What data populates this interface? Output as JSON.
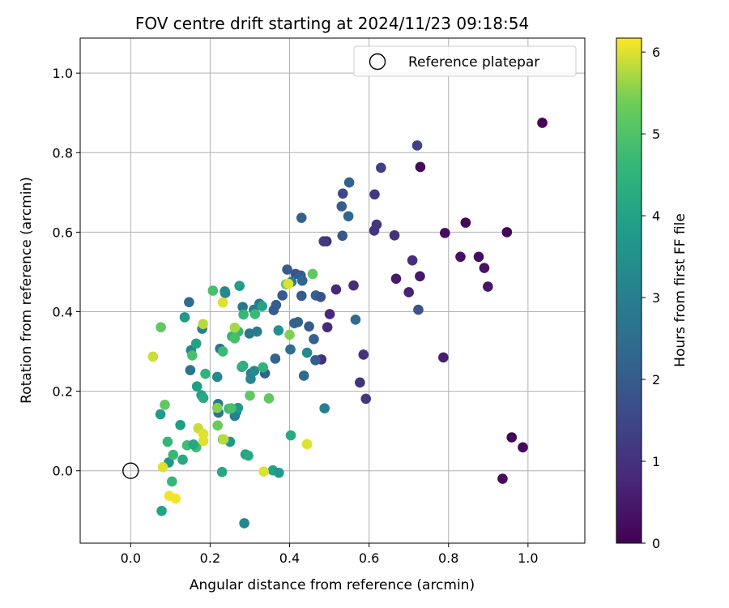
{
  "chart_data": {
    "type": "scatter",
    "title": "FOV centre drift starting at 2024/11/23 09:18:54",
    "xlabel": "Angular distance from reference (arcmin)",
    "ylabel": "Rotation from reference (arcmin)",
    "xlim": [
      -0.127,
      1.143
    ],
    "ylim": [
      -0.182,
      1.088
    ],
    "xticks": [
      "0.0",
      "0.2",
      "0.4",
      "0.6",
      "0.8",
      "1.0"
    ],
    "yticks": [
      "0.0",
      "0.2",
      "0.4",
      "0.6",
      "0.8",
      "1.0"
    ],
    "grid": true,
    "legend": {
      "position": "top-right",
      "entries": [
        "Reference platepar"
      ]
    },
    "reference_point": {
      "name": "Reference platepar",
      "x": 0.0,
      "y": 0.0
    },
    "colorbar": {
      "label": "Hours from first FF file",
      "min": 0,
      "max": 6.17,
      "ticks": [
        "0",
        "1",
        "2",
        "3",
        "4",
        "5",
        "6"
      ],
      "colormap": "viridis"
    },
    "series": [
      {
        "points": [
          {
            "x": 1.036,
            "y": 0.875,
            "c": 0.05
          },
          {
            "x": 0.947,
            "y": 0.6,
            "c": 0.1
          },
          {
            "x": 0.843,
            "y": 0.624,
            "c": 0.15
          },
          {
            "x": 0.791,
            "y": 0.598,
            "c": 0.2
          },
          {
            "x": 0.876,
            "y": 0.538,
            "c": 0.25
          },
          {
            "x": 0.83,
            "y": 0.538,
            "c": 0.3
          },
          {
            "x": 0.89,
            "y": 0.51,
            "c": 0.35
          },
          {
            "x": 0.899,
            "y": 0.463,
            "c": 0.4
          },
          {
            "x": 0.729,
            "y": 0.764,
            "c": 0.15
          },
          {
            "x": 0.728,
            "y": 0.489,
            "c": 0.45
          },
          {
            "x": 0.668,
            "y": 0.483,
            "c": 0.5
          },
          {
            "x": 0.959,
            "y": 0.084,
            "c": 0.1
          },
          {
            "x": 0.987,
            "y": 0.059,
            "c": 0.15
          },
          {
            "x": 0.936,
            "y": -0.02,
            "c": 0.2
          },
          {
            "x": 0.787,
            "y": 0.285,
            "c": 0.6
          },
          {
            "x": 0.7,
            "y": 0.449,
            "c": 0.7
          },
          {
            "x": 0.709,
            "y": 0.529,
            "c": 0.9
          },
          {
            "x": 0.664,
            "y": 0.592,
            "c": 1.0
          },
          {
            "x": 0.613,
            "y": 0.604,
            "c": 1.05
          },
          {
            "x": 0.619,
            "y": 0.619,
            "c": 1.1
          },
          {
            "x": 0.614,
            "y": 0.695,
            "c": 1.2
          },
          {
            "x": 0.63,
            "y": 0.762,
            "c": 1.3
          },
          {
            "x": 0.721,
            "y": 0.818,
            "c": 1.4
          },
          {
            "x": 0.724,
            "y": 0.405,
            "c": 1.8
          },
          {
            "x": 0.586,
            "y": 0.292,
            "c": 1.0
          },
          {
            "x": 0.577,
            "y": 0.222,
            "c": 1.0
          },
          {
            "x": 0.592,
            "y": 0.181,
            "c": 1.1
          },
          {
            "x": 0.561,
            "y": 0.466,
            "c": 0.9
          },
          {
            "x": 0.517,
            "y": 0.456,
            "c": 0.8
          },
          {
            "x": 0.501,
            "y": 0.394,
            "c": 0.8
          },
          {
            "x": 0.495,
            "y": 0.361,
            "c": 0.85
          },
          {
            "x": 0.493,
            "y": 0.577,
            "c": 0.8
          },
          {
            "x": 0.486,
            "y": 0.577,
            "c": 1.2
          },
          {
            "x": 0.48,
            "y": 0.28,
            "c": 1.0
          },
          {
            "x": 0.534,
            "y": 0.697,
            "c": 1.5
          },
          {
            "x": 0.531,
            "y": 0.665,
            "c": 2.1
          },
          {
            "x": 0.55,
            "y": 0.725,
            "c": 2.2
          },
          {
            "x": 0.548,
            "y": 0.64,
            "c": 2.3
          },
          {
            "x": 0.533,
            "y": 0.591,
            "c": 1.9
          },
          {
            "x": 0.566,
            "y": 0.38,
            "c": 2.4
          },
          {
            "x": 0.43,
            "y": 0.636,
            "c": 2.2
          },
          {
            "x": 0.394,
            "y": 0.506,
            "c": 2.0
          },
          {
            "x": 0.415,
            "y": 0.495,
            "c": 1.8
          },
          {
            "x": 0.428,
            "y": 0.491,
            "c": 2.0
          },
          {
            "x": 0.432,
            "y": 0.478,
            "c": 2.3
          },
          {
            "x": 0.405,
            "y": 0.475,
            "c": 3.0
          },
          {
            "x": 0.43,
            "y": 0.44,
            "c": 2.0
          },
          {
            "x": 0.466,
            "y": 0.441,
            "c": 2.2
          },
          {
            "x": 0.478,
            "y": 0.437,
            "c": 1.8
          },
          {
            "x": 0.382,
            "y": 0.441,
            "c": 2.0
          },
          {
            "x": 0.366,
            "y": 0.417,
            "c": 2.1
          },
          {
            "x": 0.36,
            "y": 0.404,
            "c": 2.0
          },
          {
            "x": 0.412,
            "y": 0.371,
            "c": 2.3
          },
          {
            "x": 0.421,
            "y": 0.374,
            "c": 2.2
          },
          {
            "x": 0.449,
            "y": 0.363,
            "c": 2.0
          },
          {
            "x": 0.461,
            "y": 0.331,
            "c": 2.2
          },
          {
            "x": 0.402,
            "y": 0.305,
            "c": 2.5
          },
          {
            "x": 0.364,
            "y": 0.282,
            "c": 2.2
          },
          {
            "x": 0.465,
            "y": 0.278,
            "c": 2.1
          },
          {
            "x": 0.436,
            "y": 0.239,
            "c": 2.4
          },
          {
            "x": 0.338,
            "y": 0.245,
            "c": 2.2
          },
          {
            "x": 0.488,
            "y": 0.157,
            "c": 3.0
          },
          {
            "x": 0.444,
            "y": 0.297,
            "c": 3.3
          },
          {
            "x": 0.372,
            "y": 0.353,
            "c": 3.5
          },
          {
            "x": 0.324,
            "y": 0.42,
            "c": 2.8
          },
          {
            "x": 0.31,
            "y": 0.405,
            "c": 2.9
          },
          {
            "x": 0.282,
            "y": 0.412,
            "c": 2.7
          },
          {
            "x": 0.318,
            "y": 0.35,
            "c": 2.9
          },
          {
            "x": 0.299,
            "y": 0.345,
            "c": 2.8
          },
          {
            "x": 0.238,
            "y": 0.447,
            "c": 3.0
          },
          {
            "x": 0.237,
            "y": 0.451,
            "c": 3.3
          },
          {
            "x": 0.147,
            "y": 0.424,
            "c": 2.4
          },
          {
            "x": 0.18,
            "y": 0.357,
            "c": 3.0
          },
          {
            "x": 0.152,
            "y": 0.303,
            "c": 3.2
          },
          {
            "x": 0.15,
            "y": 0.253,
            "c": 2.7
          },
          {
            "x": 0.225,
            "y": 0.307,
            "c": 2.8
          },
          {
            "x": 0.218,
            "y": 0.236,
            "c": 3.3
          },
          {
            "x": 0.221,
            "y": 0.146,
            "c": 2.6
          },
          {
            "x": 0.22,
            "y": 0.168,
            "c": 2.8
          },
          {
            "x": 0.262,
            "y": 0.138,
            "c": 2.9
          },
          {
            "x": 0.266,
            "y": 0.148,
            "c": 3.1
          },
          {
            "x": 0.27,
            "y": 0.158,
            "c": 3.7
          },
          {
            "x": 0.28,
            "y": 0.261,
            "c": 3.3
          },
          {
            "x": 0.303,
            "y": 0.245,
            "c": 3.1
          },
          {
            "x": 0.302,
            "y": 0.231,
            "c": 3.2
          },
          {
            "x": 0.311,
            "y": 0.251,
            "c": 3.3
          },
          {
            "x": 0.274,
            "y": 0.465,
            "c": 3.9
          },
          {
            "x": 0.25,
            "y": 0.073,
            "c": 3.7
          },
          {
            "x": 0.286,
            "y": -0.132,
            "c": 3.2
          },
          {
            "x": 0.331,
            "y": 0.414,
            "c": 4.0
          },
          {
            "x": 0.284,
            "y": 0.393,
            "c": 4.6
          },
          {
            "x": 0.313,
            "y": 0.394,
            "c": 4.7
          },
          {
            "x": 0.255,
            "y": 0.338,
            "c": 4.5
          },
          {
            "x": 0.271,
            "y": 0.35,
            "c": 4.6
          },
          {
            "x": 0.262,
            "y": 0.333,
            "c": 4.9
          },
          {
            "x": 0.232,
            "y": 0.3,
            "c": 4.7
          },
          {
            "x": 0.165,
            "y": 0.32,
            "c": 4.0
          },
          {
            "x": 0.136,
            "y": 0.386,
            "c": 3.7
          },
          {
            "x": 0.155,
            "y": 0.29,
            "c": 4.9
          },
          {
            "x": 0.167,
            "y": 0.212,
            "c": 3.9
          },
          {
            "x": 0.178,
            "y": 0.19,
            "c": 4.0
          },
          {
            "x": 0.183,
            "y": 0.183,
            "c": 4.2
          },
          {
            "x": 0.188,
            "y": 0.244,
            "c": 4.5
          },
          {
            "x": 0.207,
            "y": 0.453,
            "c": 4.9
          },
          {
            "x": 0.283,
            "y": 0.264,
            "c": 4.1
          },
          {
            "x": 0.281,
            "y": 0.262,
            "c": 4.4
          },
          {
            "x": 0.333,
            "y": 0.26,
            "c": 4.5
          },
          {
            "x": 0.247,
            "y": 0.156,
            "c": 4.7
          },
          {
            "x": 0.253,
            "y": 0.157,
            "c": 4.9
          },
          {
            "x": 0.3,
            "y": 0.189,
            "c": 5.2
          },
          {
            "x": 0.348,
            "y": 0.182,
            "c": 5.2
          },
          {
            "x": 0.358,
            "y": 0.001,
            "c": 4.0
          },
          {
            "x": 0.373,
            "y": -0.005,
            "c": 3.7
          },
          {
            "x": 0.289,
            "y": 0.041,
            "c": 4.0
          },
          {
            "x": 0.296,
            "y": 0.038,
            "c": 4.2
          },
          {
            "x": 0.403,
            "y": 0.089,
            "c": 4.2
          },
          {
            "x": 0.23,
            "y": -0.003,
            "c": 4.1
          },
          {
            "x": 0.075,
            "y": 0.142,
            "c": 3.8
          },
          {
            "x": 0.125,
            "y": 0.115,
            "c": 3.9
          },
          {
            "x": 0.093,
            "y": 0.073,
            "c": 4.6
          },
          {
            "x": 0.096,
            "y": 0.021,
            "c": 3.6
          },
          {
            "x": 0.131,
            "y": 0.028,
            "c": 4.2
          },
          {
            "x": 0.107,
            "y": 0.04,
            "c": 4.7
          },
          {
            "x": 0.142,
            "y": 0.064,
            "c": 4.8
          },
          {
            "x": 0.165,
            "y": 0.059,
            "c": 4.8
          },
          {
            "x": 0.158,
            "y": 0.066,
            "c": 4.1
          },
          {
            "x": 0.104,
            "y": -0.027,
            "c": 4.6
          },
          {
            "x": 0.078,
            "y": -0.101,
            "c": 4.0
          },
          {
            "x": 0.076,
            "y": 0.361,
            "c": 5.2
          },
          {
            "x": 0.086,
            "y": 0.166,
            "c": 5.2
          },
          {
            "x": 0.219,
            "y": 0.114,
            "c": 5.3
          },
          {
            "x": 0.218,
            "y": 0.158,
            "c": 5.5
          },
          {
            "x": 0.232,
            "y": 0.079,
            "c": 5.3
          },
          {
            "x": 0.4,
            "y": 0.342,
            "c": 5.5
          },
          {
            "x": 0.391,
            "y": 0.469,
            "c": 5.3
          },
          {
            "x": 0.458,
            "y": 0.495,
            "c": 5.2
          },
          {
            "x": 0.397,
            "y": 0.47,
            "c": 6.0
          },
          {
            "x": 0.182,
            "y": 0.369,
            "c": 5.8
          },
          {
            "x": 0.232,
            "y": 0.423,
            "c": 6.0
          },
          {
            "x": 0.262,
            "y": 0.36,
            "c": 5.7
          },
          {
            "x": 0.056,
            "y": 0.287,
            "c": 5.9
          },
          {
            "x": 0.17,
            "y": 0.107,
            "c": 5.9
          },
          {
            "x": 0.183,
            "y": 0.093,
            "c": 6.0
          },
          {
            "x": 0.183,
            "y": 0.075,
            "c": 6.0
          },
          {
            "x": 0.234,
            "y": 0.079,
            "c": 5.8
          },
          {
            "x": 0.335,
            "y": -0.002,
            "c": 6.0
          },
          {
            "x": 0.444,
            "y": 0.067,
            "c": 6.0
          },
          {
            "x": 0.081,
            "y": 0.009,
            "c": 6.0
          },
          {
            "x": 0.097,
            "y": -0.063,
            "c": 6.1
          },
          {
            "x": 0.113,
            "y": -0.07,
            "c": 6.1
          }
        ]
      }
    ]
  }
}
